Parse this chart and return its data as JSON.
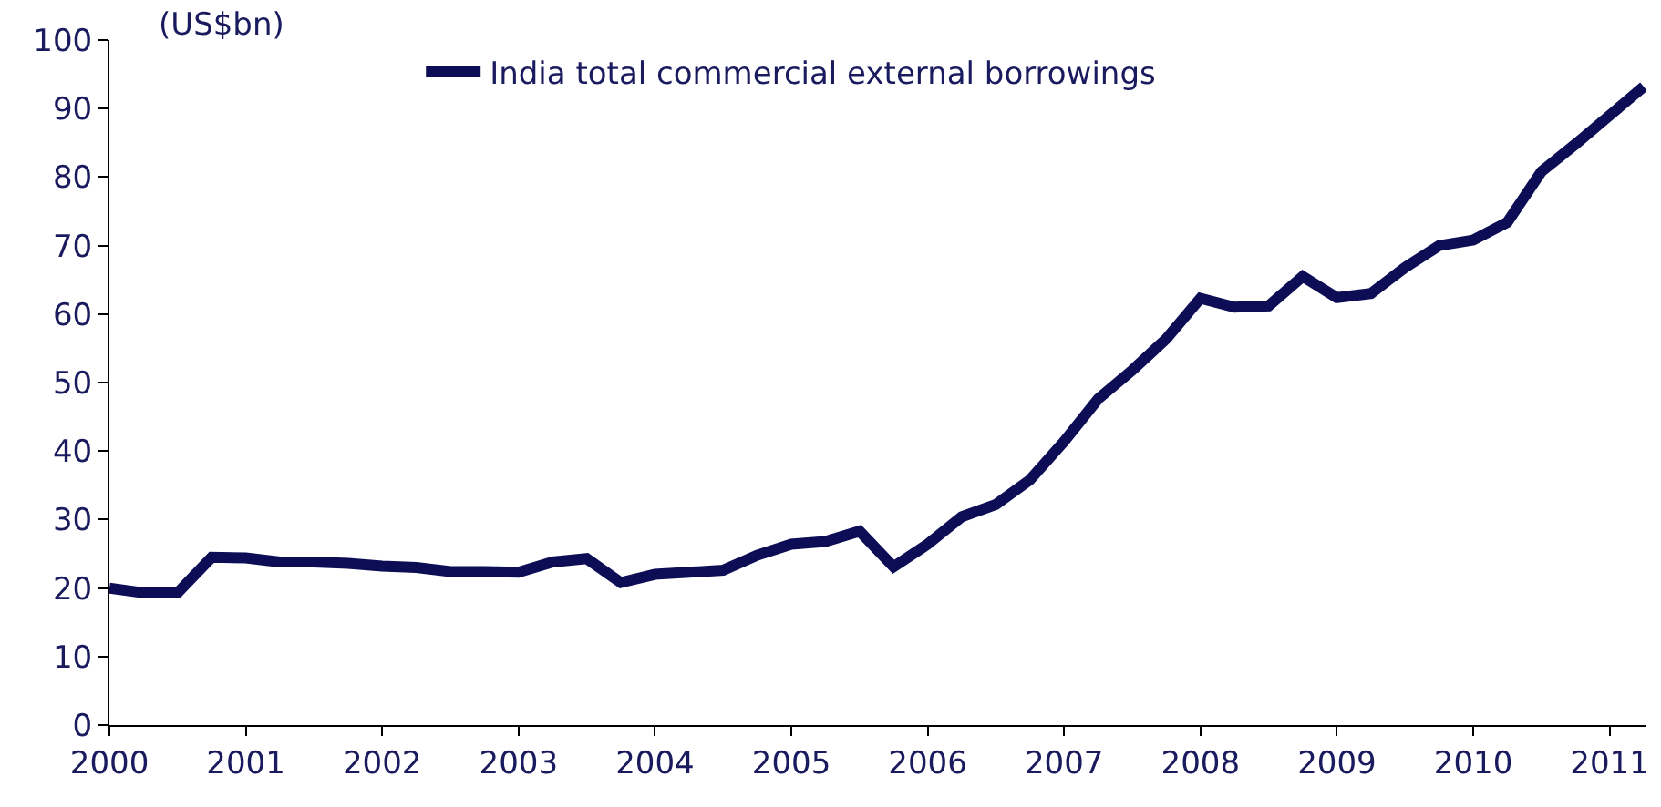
{
  "chart_data": {
    "type": "line",
    "ylabel": "(US$bn)",
    "x": [
      2000.0,
      2000.25,
      2000.5,
      2000.75,
      2001.0,
      2001.25,
      2001.5,
      2001.75,
      2002.0,
      2002.25,
      2002.5,
      2002.75,
      2003.0,
      2003.25,
      2003.5,
      2003.75,
      2004.0,
      2004.25,
      2004.5,
      2004.75,
      2005.0,
      2005.25,
      2005.5,
      2005.75,
      2006.0,
      2006.25,
      2006.5,
      2006.75,
      2007.0,
      2007.25,
      2007.5,
      2007.75,
      2008.0,
      2008.25,
      2008.5,
      2008.75,
      2009.0,
      2009.25,
      2009.5,
      2009.75,
      2010.0,
      2010.25,
      2010.5,
      2010.75,
      2011.0,
      2011.25
    ],
    "series": [
      {
        "name": "India total commercial external borrowings",
        "color": "#0d0d55",
        "values": [
          20.0,
          19.3,
          19.3,
          24.5,
          24.4,
          23.8,
          23.8,
          23.6,
          23.2,
          23.0,
          22.4,
          22.4,
          22.3,
          23.8,
          24.3,
          20.8,
          22.0,
          22.3,
          22.6,
          24.8,
          26.4,
          26.8,
          28.3,
          23.1,
          26.4,
          30.4,
          32.2,
          35.8,
          41.4,
          47.6,
          51.8,
          56.4,
          62.3,
          61.0,
          61.2,
          65.5,
          62.4,
          63.0,
          66.8,
          70.0,
          70.8,
          73.4,
          80.8,
          84.8,
          89.0,
          93.2
        ]
      }
    ],
    "xlim": [
      2000,
      2011.27
    ],
    "xticks": [
      2000,
      2001,
      2002,
      2003,
      2004,
      2005,
      2006,
      2007,
      2008,
      2009,
      2010,
      2011
    ],
    "ylim": [
      0,
      100
    ],
    "yticks": [
      0,
      10,
      20,
      30,
      40,
      50,
      60,
      70,
      80,
      90,
      100
    ],
    "legend": "top",
    "marker": "none",
    "line_style": "solid"
  }
}
